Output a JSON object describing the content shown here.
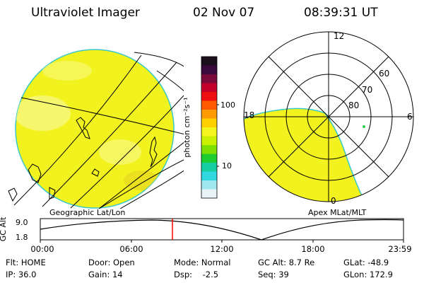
{
  "header": {
    "title": "Ultraviolet Imager",
    "date": "02 Nov 07",
    "time": "08:39:31 UT"
  },
  "geo_map": {
    "caption": "Geographic Lat/Lon",
    "fill_color": "#f2f21e"
  },
  "polar_map": {
    "caption": "Apex MLat/MLT",
    "clock_labels": {
      "top": "12",
      "right": "6",
      "left": "18",
      "bottom": "0"
    },
    "lat_labels": [
      "60",
      "70",
      "80"
    ],
    "fill_color": "#f2f21e"
  },
  "colorbar": {
    "unit_label": "photon cm⁻²s⁻¹",
    "tick_labels": [
      "100",
      "10"
    ],
    "colors": [
      "#1c0f1c",
      "#3a0a3e",
      "#7a0a3a",
      "#c4002a",
      "#ee1010",
      "#ff5a00",
      "#ff9a00",
      "#ffd000",
      "#f4f41e",
      "#c8f000",
      "#7ee000",
      "#1ccc30",
      "#16cfa0",
      "#30d8e0",
      "#a0e8f0",
      "#e8f4f8"
    ]
  },
  "altitude_plot": {
    "axis_label": "GC Alt",
    "y_ticks": [
      "9.0",
      "1.8"
    ],
    "x_ticks": [
      "00:00",
      "06:00",
      "12:00",
      "18:00",
      "23:59"
    ],
    "marker_color": "#ff0000"
  },
  "footer": {
    "flt": "Flt: HOME",
    "door": "Door: Open",
    "mode": "Mode: Normal",
    "gc_alt": "GC Alt: 8.7 Re",
    "glat": "GLat: -48.9",
    "ip": "IP: 36.0",
    "gain": "Gain: 14",
    "dsp": "Dsp:    -2.5",
    "seq": "Seq: 39",
    "glon": "GLon: 172.9"
  }
}
